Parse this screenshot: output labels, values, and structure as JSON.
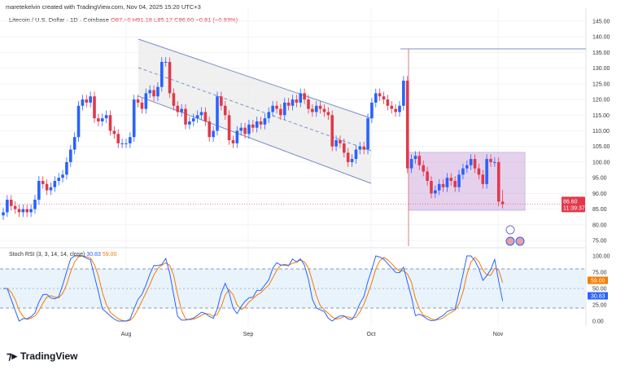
{
  "credit": "maretekelvin created with TradingView.com, Nov 04, 2025 15:20 UTC+3",
  "legend": {
    "symbol": "Litecoin / U.S. Dollar · 1D · Coinbase",
    "open": "O87.40",
    "high": "H91.18",
    "low": "L85.17",
    "close": "C86.60",
    "change": "−0.81 (−0.93%)"
  },
  "price_label": {
    "value": "86.60",
    "countdown": "11:39:37"
  },
  "rsi": {
    "title": "Stoch RSI (3, 3, 14, 14, close)",
    "k_label": "30.83",
    "d_label": "59.00"
  },
  "logo": "TradingView",
  "colors": {
    "up": "#2962ff",
    "down": "#e0394b",
    "k": "#2962ff",
    "d": "#f57c00",
    "box": "#c89ad8"
  },
  "chart_data": {
    "type": "candlestick",
    "x_ticks": [
      "Aug",
      "Sep",
      "Oct",
      "Nov"
    ],
    "y_ticks": [
      "145.00",
      "140.00",
      "135.00",
      "130.00",
      "125.00",
      "120.00",
      "115.00",
      "110.00",
      "105.00",
      "100.00",
      "95.00",
      "90.00",
      "85.00",
      "80.00",
      "75.00"
    ],
    "ylim": [
      75,
      145
    ],
    "closes": [
      84,
      88,
      86,
      85,
      84,
      85,
      84,
      85,
      88,
      94,
      93,
      91,
      92,
      94,
      95,
      96,
      100,
      104,
      108,
      118,
      120,
      119,
      121,
      114,
      113,
      114,
      115,
      110,
      109,
      106,
      106,
      106,
      108,
      120,
      119,
      117,
      122,
      123,
      121,
      124,
      132,
      132,
      122,
      118,
      116,
      117,
      112,
      113,
      114,
      115,
      116,
      113,
      108,
      110,
      121,
      118,
      115,
      107,
      106,
      110,
      111,
      109,
      112,
      111,
      113,
      112,
      114,
      116,
      118,
      117,
      115,
      119,
      118,
      120,
      119,
      122,
      120,
      117,
      116,
      118,
      117,
      116,
      115,
      105,
      107,
      106,
      103,
      100,
      101,
      104,
      105,
      104,
      114,
      119,
      122,
      121,
      120,
      118,
      117,
      116,
      118,
      126,
      98,
      101,
      102,
      99,
      97,
      94,
      90,
      91,
      93,
      92,
      95,
      94,
      92,
      96,
      98,
      99,
      101,
      98,
      96,
      93,
      101,
      100,
      100,
      87.4,
      86.6
    ],
    "last": {
      "open": 87.4,
      "high": 91.18,
      "low": 85.17,
      "close": 86.6
    },
    "rsi_panel": {
      "y_ticks": [
        "100.00",
        "75.00",
        "50.00",
        "25.00",
        "0.00"
      ],
      "bands": [
        20,
        80
      ],
      "last_k": 30.83,
      "last_d": 59.0
    }
  }
}
